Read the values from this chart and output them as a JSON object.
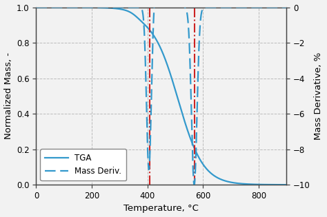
{
  "title": "",
  "xlabel": "Temperature, °C",
  "ylabel_left": "Normalized Mass, -",
  "ylabel_right": "Mass Derivative, %",
  "xlim": [
    0,
    900
  ],
  "ylim_left": [
    0,
    1.0
  ],
  "ylim_right": [
    -10,
    0
  ],
  "yticks_left": [
    0,
    0.2,
    0.4,
    0.6,
    0.8,
    1.0
  ],
  "yticks_right": [
    -10,
    -8,
    -6,
    -4,
    -2,
    0
  ],
  "xticks": [
    0,
    200,
    400,
    600,
    800
  ],
  "vline1": 408,
  "vline2": 568,
  "tga_color": "#3399cc",
  "deriv_color": "#3399cc",
  "vline_color": "#cc2222",
  "grid_color": "#bbbbbb",
  "legend_labels": [
    "TGA",
    "Mass Deriv."
  ],
  "bg_color": "#f2f2f2"
}
